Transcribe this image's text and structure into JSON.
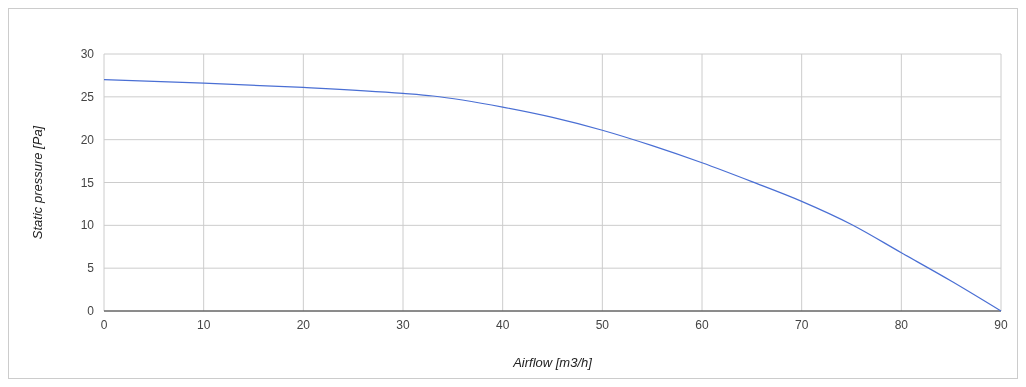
{
  "chart_data": {
    "type": "line",
    "xlabel": "Airflow [m3/h]",
    "ylabel": "Static pressure [Pa]",
    "x": [
      0,
      10,
      20,
      30,
      33,
      40,
      45,
      50,
      55,
      60,
      65,
      70,
      75,
      80,
      85,
      90
    ],
    "series": [
      {
        "color": "#4a6fd4",
        "values": [
          27,
          26.6,
          26.1,
          25.4,
          25.1,
          23.8,
          22.6,
          21.1,
          19.3,
          17.3,
          15.1,
          12.8,
          10.1,
          6.8,
          3.5,
          0
        ]
      }
    ],
    "xlim": [
      0,
      90
    ],
    "xticks": [
      0,
      10,
      20,
      30,
      40,
      50,
      60,
      70,
      80,
      90
    ],
    "ylim": [
      0,
      30
    ],
    "yticks": [
      0,
      5,
      10,
      15,
      20,
      25,
      30
    ],
    "grid": true,
    "marker": "none",
    "line_style": "solid"
  }
}
